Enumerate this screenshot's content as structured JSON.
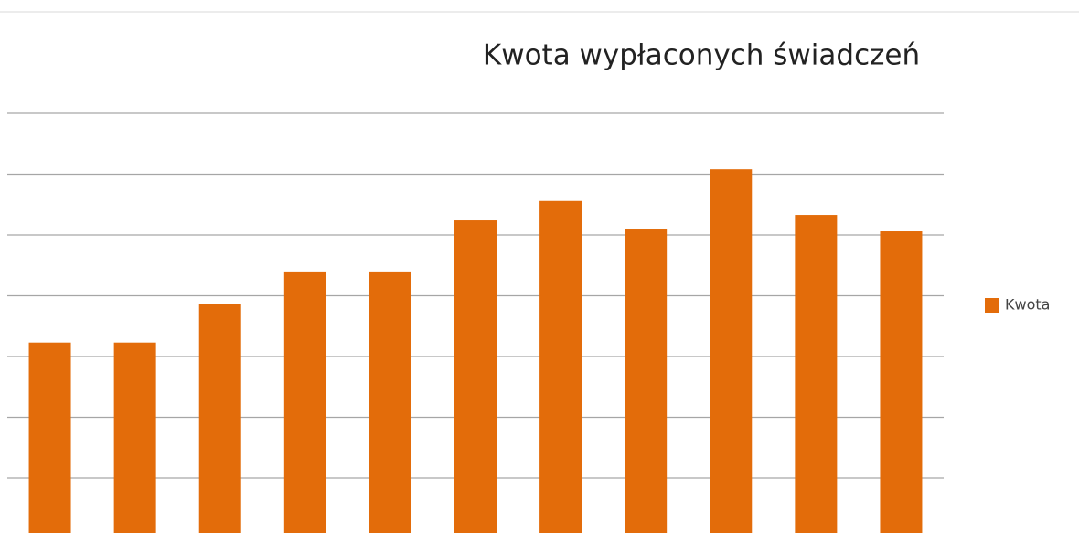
{
  "chart_data": {
    "type": "bar",
    "title": "Kwota wypłaconych świadczeń",
    "categories": [
      null,
      null,
      null,
      null,
      null,
      null,
      null,
      null,
      null,
      null,
      null
    ],
    "series": [
      {
        "name": "Kwota",
        "color": "#e36c0a",
        "values": [
          3.23,
          3.23,
          3.87,
          4.4,
          4.4,
          5.24,
          5.56,
          5.09,
          6.08,
          5.33,
          5.06
        ]
      }
    ],
    "ylim": [
      0,
      7
    ],
    "yticks": [
      1,
      2,
      3,
      4,
      5,
      6,
      7
    ],
    "grid": true,
    "legend": "right"
  }
}
